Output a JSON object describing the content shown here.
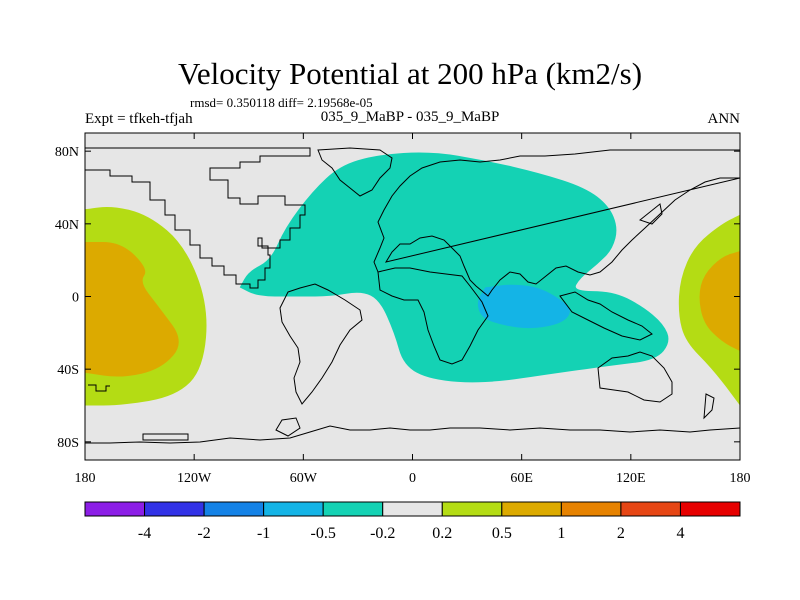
{
  "title": "Velocity Potential at 200 hPa (km2/s)",
  "stats_line": "rmsd= 0.350118  diff= 2.19568e-05",
  "left_label": "Expt = tfkeh-tfjah",
  "center_label": "035_9_MaBP - 035_9_MaBP",
  "right_label": "ANN",
  "map": {
    "projection": "cylindrical-equidistant",
    "lon_range": [
      -180,
      180
    ],
    "lat_range": [
      -90,
      90
    ],
    "x_ticks": [
      {
        "value": -180,
        "label": "180"
      },
      {
        "value": -120,
        "label": "120W"
      },
      {
        "value": -60,
        "label": "60W"
      },
      {
        "value": 0,
        "label": "0"
      },
      {
        "value": 60,
        "label": "60E"
      },
      {
        "value": 120,
        "label": "120E"
      },
      {
        "value": 180,
        "label": "180"
      }
    ],
    "y_ticks": [
      {
        "value": 80,
        "label": "80N"
      },
      {
        "value": 40,
        "label": "40N"
      },
      {
        "value": 0,
        "label": "0"
      },
      {
        "value": -40,
        "label": "40S"
      },
      {
        "value": -80,
        "label": "80S"
      }
    ],
    "background_color": "#e6e6e6"
  },
  "colorbar": {
    "labels": [
      "-4",
      "-2",
      "-1",
      "-0.5",
      "-0.2",
      "0.2",
      "0.5",
      "1",
      "2",
      "4"
    ],
    "colors": [
      "#8c1ee6",
      "#3232e6",
      "#1482e6",
      "#14b4e6",
      "#14d2b4",
      "#e6e6e6",
      "#b4dc14",
      "#dcaa00",
      "#e68200",
      "#e64614",
      "#e60000"
    ]
  },
  "chart_data": {
    "type": "heatmap",
    "title": "Velocity Potential at 200 hPa (km2/s)",
    "x_label": "",
    "y_label": "",
    "xlim": [
      -180,
      180
    ],
    "ylim": [
      -90,
      90
    ],
    "levels": [
      -4,
      -2,
      -1,
      -0.5,
      -0.2,
      0.2,
      0.5,
      1,
      2,
      4
    ],
    "regions": [
      {
        "level": "-0.5 to -0.2",
        "color": "#14d2b4",
        "description": "large negative region over Africa, Eurasia, Indian Ocean",
        "lonlat": [
          [
            -95,
            5
          ],
          [
            -90,
            14
          ],
          [
            -78,
            20
          ],
          [
            -70,
            38
          ],
          [
            -55,
            58
          ],
          [
            -40,
            72
          ],
          [
            -20,
            78
          ],
          [
            10,
            80
          ],
          [
            40,
            75
          ],
          [
            70,
            68
          ],
          [
            95,
            60
          ],
          [
            108,
            50
          ],
          [
            113,
            38
          ],
          [
            110,
            26
          ],
          [
            102,
            18
          ],
          [
            92,
            10
          ],
          [
            88,
            3
          ],
          [
            110,
            3
          ],
          [
            126,
            -5
          ],
          [
            138,
            -15
          ],
          [
            142,
            -25
          ],
          [
            134,
            -35
          ],
          [
            110,
            -38
          ],
          [
            80,
            -42
          ],
          [
            40,
            -48
          ],
          [
            10,
            -46
          ],
          [
            -5,
            -38
          ],
          [
            -10,
            -20
          ],
          [
            -18,
            -2
          ],
          [
            -28,
            3
          ],
          [
            -45,
            0
          ],
          [
            -62,
            0
          ],
          [
            -85,
            0
          ],
          [
            -95,
            5
          ]
        ]
      },
      {
        "level": "-1 to -0.5",
        "color": "#14b4e6",
        "description": "Indian Ocean minimum",
        "lonlat": [
          [
            40,
            5
          ],
          [
            55,
            7
          ],
          [
            70,
            5
          ],
          [
            82,
            -2
          ],
          [
            88,
            -8
          ],
          [
            82,
            -15
          ],
          [
            65,
            -18
          ],
          [
            50,
            -16
          ],
          [
            38,
            -12
          ],
          [
            35,
            -3
          ],
          [
            40,
            5
          ]
        ]
      },
      {
        "level": "0.2 to 0.5",
        "color": "#b4dc14",
        "description": "eastern Pacific positive",
        "lonlat": [
          [
            -180,
            48
          ],
          [
            -165,
            50
          ],
          [
            -145,
            45
          ],
          [
            -125,
            28
          ],
          [
            -112,
            -5
          ],
          [
            -115,
            -40
          ],
          [
            -130,
            -55
          ],
          [
            -160,
            -60
          ],
          [
            -180,
            -60
          ]
        ]
      },
      {
        "level": "0.5 to 1",
        "color": "#dcaa00",
        "description": "eastern Pacific maximum",
        "lonlat": [
          [
            -180,
            30
          ],
          [
            -160,
            30
          ],
          [
            -145,
            15
          ],
          [
            -150,
            8
          ],
          [
            -140,
            -5
          ],
          [
            -125,
            -25
          ],
          [
            -138,
            -40
          ],
          [
            -160,
            -45
          ],
          [
            -180,
            -42
          ]
        ]
      },
      {
        "level": "0.2 to 0.5",
        "color": "#b4dc14",
        "description": "western Pacific positive",
        "lonlat": [
          [
            180,
            45
          ],
          [
            170,
            40
          ],
          [
            155,
            28
          ],
          [
            147,
            10
          ],
          [
            146,
            -10
          ],
          [
            150,
            -25
          ],
          [
            165,
            -40
          ],
          [
            180,
            -60
          ]
        ]
      },
      {
        "level": "0.5 to 1",
        "color": "#dcaa00",
        "description": "western Pacific maximum",
        "lonlat": [
          [
            180,
            25
          ],
          [
            170,
            22
          ],
          [
            160,
            12
          ],
          [
            157,
            0
          ],
          [
            160,
            -15
          ],
          [
            170,
            -25
          ],
          [
            180,
            -30
          ]
        ]
      }
    ]
  }
}
